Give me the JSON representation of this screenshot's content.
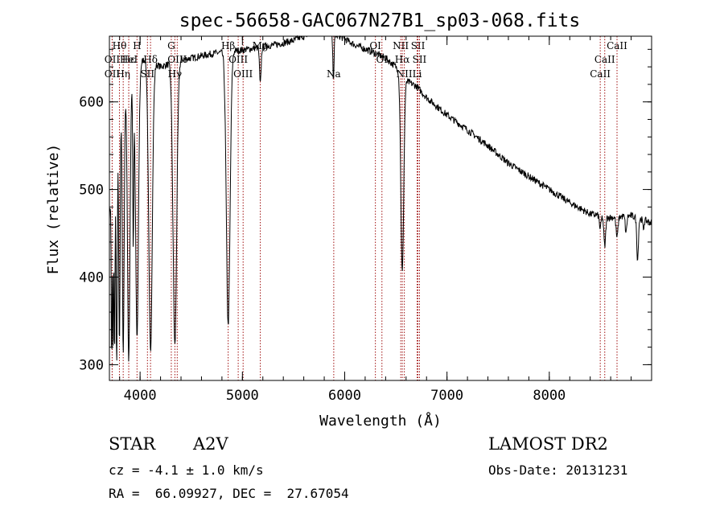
{
  "chart_data": {
    "type": "line",
    "title": "spec-56658-GAC067N27B1_sp03-068.fits",
    "xlabel": "Wavelength (Å)",
    "ylabel": "Flux (relative)",
    "xlim": [
      3700,
      9000
    ],
    "ylim": [
      282,
      675
    ],
    "xticks": [
      4000,
      5000,
      6000,
      7000,
      8000
    ],
    "yticks": [
      300,
      400,
      500,
      600
    ],
    "grid": false,
    "series": [
      {
        "continuum": [
          [
            3700,
            470
          ],
          [
            3760,
            545
          ],
          [
            3800,
            600
          ],
          [
            3850,
            610
          ],
          [
            3900,
            625
          ],
          [
            3950,
            638
          ],
          [
            4050,
            650
          ],
          [
            4200,
            640
          ],
          [
            4400,
            648
          ],
          [
            4500,
            650
          ],
          [
            4700,
            655
          ],
          [
            4900,
            658
          ],
          [
            5050,
            660
          ],
          [
            5200,
            663
          ],
          [
            5350,
            666
          ],
          [
            5500,
            670
          ],
          [
            5650,
            678
          ],
          [
            5800,
            680
          ],
          [
            5950,
            675
          ],
          [
            6100,
            665
          ],
          [
            6250,
            658
          ],
          [
            6400,
            650
          ],
          [
            6520,
            638
          ],
          [
            6600,
            624
          ],
          [
            6700,
            618
          ],
          [
            6800,
            605
          ],
          [
            7000,
            585
          ],
          [
            7200,
            568
          ],
          [
            7400,
            550
          ],
          [
            7600,
            530
          ],
          [
            7800,
            515
          ],
          [
            8000,
            500
          ],
          [
            8200,
            485
          ],
          [
            8400,
            472
          ],
          [
            8600,
            468
          ],
          [
            8800,
            470
          ],
          [
            9000,
            462
          ]
        ],
        "absorption": [
          [
            3722,
            300,
            4
          ],
          [
            3735,
            320,
            4
          ],
          [
            3750,
            310,
            5
          ],
          [
            3771,
            300,
            6
          ],
          [
            3798,
            320,
            7
          ],
          [
            3835,
            315,
            9
          ],
          [
            3889,
            305,
            12
          ],
          [
            3933,
            440,
            5
          ],
          [
            3970,
            330,
            14
          ],
          [
            4102,
            315,
            17
          ],
          [
            4340,
            322,
            18
          ],
          [
            4861,
            345,
            18
          ],
          [
            5175,
            620,
            8
          ],
          [
            5890,
            628,
            6
          ],
          [
            6563,
            405,
            14
          ],
          [
            8498,
            455,
            8
          ],
          [
            8542,
            435,
            9
          ],
          [
            8662,
            445,
            9
          ],
          [
            8750,
            450,
            7
          ],
          [
            8863,
            420,
            8
          ],
          [
            8920,
            455,
            6
          ]
        ],
        "noise": 4
      }
    ],
    "reference_lines": [
      {
        "label": "Hθ",
        "x": 3798,
        "row": 1
      },
      {
        "label": "Hη",
        "x": 3835,
        "row": 3
      },
      {
        "label": "OII",
        "x": 3727,
        "row": 3
      },
      {
        "label": "OII",
        "x": 3727,
        "row": 2
      },
      {
        "label": "Hε",
        "x": 3889,
        "row": 2
      },
      {
        "label": "HeI",
        "x": 3889,
        "row": 2
      },
      {
        "label": "H",
        "x": 3970,
        "row": 1
      },
      {
        "label": "Hδ",
        "x": 4102,
        "row": 2
      },
      {
        "label": "SII",
        "x": 4072,
        "row": 3
      },
      {
        "label": "G",
        "x": 4305,
        "row": 1
      },
      {
        "label": "OIII",
        "x": 4363,
        "row": 2
      },
      {
        "label": "Hγ",
        "x": 4340,
        "row": 3
      },
      {
        "label": "Hβ",
        "x": 4861,
        "row": 1
      },
      {
        "label": "OIII",
        "x": 4959,
        "row": 2
      },
      {
        "label": "OIII",
        "x": 5007,
        "row": 3
      },
      {
        "label": "Mg",
        "x": 5175,
        "row": 1
      },
      {
        "label": "Na",
        "x": 5893,
        "row": 3
      },
      {
        "label": "OI",
        "x": 6300,
        "row": 1
      },
      {
        "label": "OI",
        "x": 6364,
        "row": 2
      },
      {
        "label": "NII",
        "x": 6548,
        "row": 1
      },
      {
        "label": "Hα",
        "x": 6563,
        "row": 2
      },
      {
        "label": "NII",
        "x": 6583,
        "row": 3
      },
      {
        "label": "SII",
        "x": 6716,
        "row": 1
      },
      {
        "label": "SII",
        "x": 6731,
        "row": 2
      },
      {
        "label": "Li",
        "x": 6708,
        "row": 3
      },
      {
        "label": "CaII",
        "x": 8662,
        "row": 1
      },
      {
        "label": "CaII",
        "x": 8542,
        "row": 2
      },
      {
        "label": "CaII",
        "x": 8498,
        "row": 3
      }
    ],
    "colors": {
      "spectrum": "#000000",
      "reference_line": "#a01010",
      "axes": "#000000"
    }
  },
  "info": {
    "object_type": "STAR",
    "subclass": "A2V",
    "survey": "LAMOST DR2",
    "velocity": "cz = -4.1 ± 1.0 km/s",
    "obs_date": "Obs-Date: 20131231",
    "coords": "RA =  66.09927, DEC =  27.67054"
  }
}
